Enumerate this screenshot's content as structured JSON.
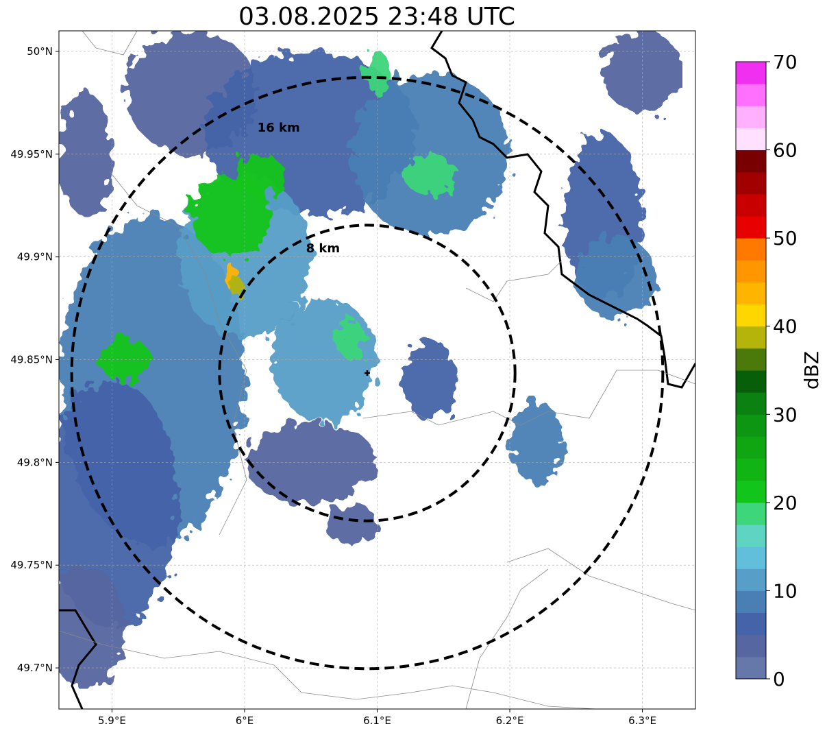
{
  "title": "03.08.2025 23:48 UTC",
  "map": {
    "lon_range": [
      5.86,
      6.34
    ],
    "lat_range": [
      49.68,
      50.01
    ],
    "x_ticks": [
      {
        "value": 5.9,
        "label": "5.9°E"
      },
      {
        "value": 6.0,
        "label": "6°E"
      },
      {
        "value": 6.1,
        "label": "6.1°E"
      },
      {
        "value": 6.2,
        "label": "6.2°E"
      },
      {
        "value": 6.3,
        "label": "6.3°E"
      }
    ],
    "y_ticks": [
      {
        "value": 50.0,
        "label": "50°N"
      },
      {
        "value": 49.95,
        "label": "49.95°N"
      },
      {
        "value": 49.9,
        "label": "49.9°N"
      },
      {
        "value": 49.85,
        "label": "49.85°N"
      },
      {
        "value": 49.8,
        "label": "49.8°N"
      },
      {
        "value": 49.75,
        "label": "49.75°N"
      },
      {
        "value": 49.7,
        "label": "49.7°N"
      }
    ],
    "radar_site": {
      "lon": 6.0925,
      "lat": 49.8435
    },
    "range_rings": [
      {
        "label": "8 km",
        "radius_km": 8
      },
      {
        "label": "16 km",
        "radius_km": 16
      }
    ],
    "gridlines": true
  },
  "colorbar": {
    "label": "dBZ",
    "min": 0,
    "max": 70,
    "tick_labels": [
      "0",
      "10",
      "20",
      "30",
      "40",
      "50",
      "60",
      "70"
    ],
    "colors": [
      "#6677aa",
      "#5566a0",
      "#4563a8",
      "#4a7fb5",
      "#579ec8",
      "#62bfdc",
      "#5fd4c3",
      "#3dd67a",
      "#12c51b",
      "#10b514",
      "#0fa612",
      "#0d9612",
      "#0a8110",
      "#075f0a",
      "#4b7a0a",
      "#b4b40a",
      "#ffd700",
      "#ffb400",
      "#ff9600",
      "#ff7800",
      "#e60000",
      "#c80000",
      "#a00000",
      "#780000",
      "#ffe0ff",
      "#ffb0ff",
      "#ff70ff",
      "#f030f0"
    ]
  },
  "echo_regions": [
    {
      "lon": 5.88,
      "lat": 49.95,
      "rx": 0.02,
      "ry": 0.03,
      "dbz": 3
    },
    {
      "lon": 5.96,
      "lat": 49.98,
      "rx": 0.05,
      "ry": 0.03,
      "dbz": 4
    },
    {
      "lon": 6.05,
      "lat": 49.96,
      "rx": 0.08,
      "ry": 0.04,
      "dbz": 6
    },
    {
      "lon": 6.14,
      "lat": 49.95,
      "rx": 0.06,
      "ry": 0.04,
      "dbz": 8
    },
    {
      "lon": 6.3,
      "lat": 49.99,
      "rx": 0.03,
      "ry": 0.02,
      "dbz": 4
    },
    {
      "lon": 6.27,
      "lat": 49.92,
      "rx": 0.03,
      "ry": 0.04,
      "dbz": 5
    },
    {
      "lon": 6.28,
      "lat": 49.89,
      "rx": 0.03,
      "ry": 0.02,
      "dbz": 8
    },
    {
      "lon": 5.93,
      "lat": 49.84,
      "rx": 0.07,
      "ry": 0.08,
      "dbz": 9
    },
    {
      "lon": 5.9,
      "lat": 49.78,
      "rx": 0.05,
      "ry": 0.06,
      "dbz": 6
    },
    {
      "lon": 5.88,
      "lat": 49.72,
      "rx": 0.03,
      "ry": 0.03,
      "dbz": 4
    },
    {
      "lon": 6.0,
      "lat": 49.9,
      "rx": 0.05,
      "ry": 0.04,
      "dbz": 12
    },
    {
      "lon": 6.06,
      "lat": 49.85,
      "rx": 0.04,
      "ry": 0.03,
      "dbz": 10
    },
    {
      "lon": 6.05,
      "lat": 49.8,
      "rx": 0.05,
      "ry": 0.02,
      "dbz": 4
    },
    {
      "lon": 6.14,
      "lat": 49.84,
      "rx": 0.02,
      "ry": 0.02,
      "dbz": 7
    },
    {
      "lon": 6.22,
      "lat": 49.81,
      "rx": 0.02,
      "ry": 0.02,
      "dbz": 9
    },
    {
      "lon": 6.08,
      "lat": 49.77,
      "rx": 0.02,
      "ry": 0.01,
      "dbz": 4
    },
    {
      "lon": 5.99,
      "lat": 49.92,
      "rx": 0.03,
      "ry": 0.02,
      "dbz": 22
    },
    {
      "lon": 6.01,
      "lat": 49.94,
      "rx": 0.02,
      "ry": 0.01,
      "dbz": 20
    },
    {
      "lon": 5.91,
      "lat": 49.85,
      "rx": 0.02,
      "ry": 0.01,
      "dbz": 22
    },
    {
      "lon": 6.08,
      "lat": 49.86,
      "rx": 0.01,
      "ry": 0.01,
      "dbz": 19
    },
    {
      "lon": 6.14,
      "lat": 49.94,
      "rx": 0.02,
      "ry": 0.01,
      "dbz": 18
    },
    {
      "lon": 6.1,
      "lat": 49.99,
      "rx": 0.01,
      "ry": 0.01,
      "dbz": 18
    },
    {
      "lon": 5.99,
      "lat": 49.89,
      "rx": 0.005,
      "ry": 0.006,
      "dbz": 43
    },
    {
      "lon": 5.995,
      "lat": 49.885,
      "rx": 0.005,
      "ry": 0.005,
      "dbz": 38
    }
  ]
}
